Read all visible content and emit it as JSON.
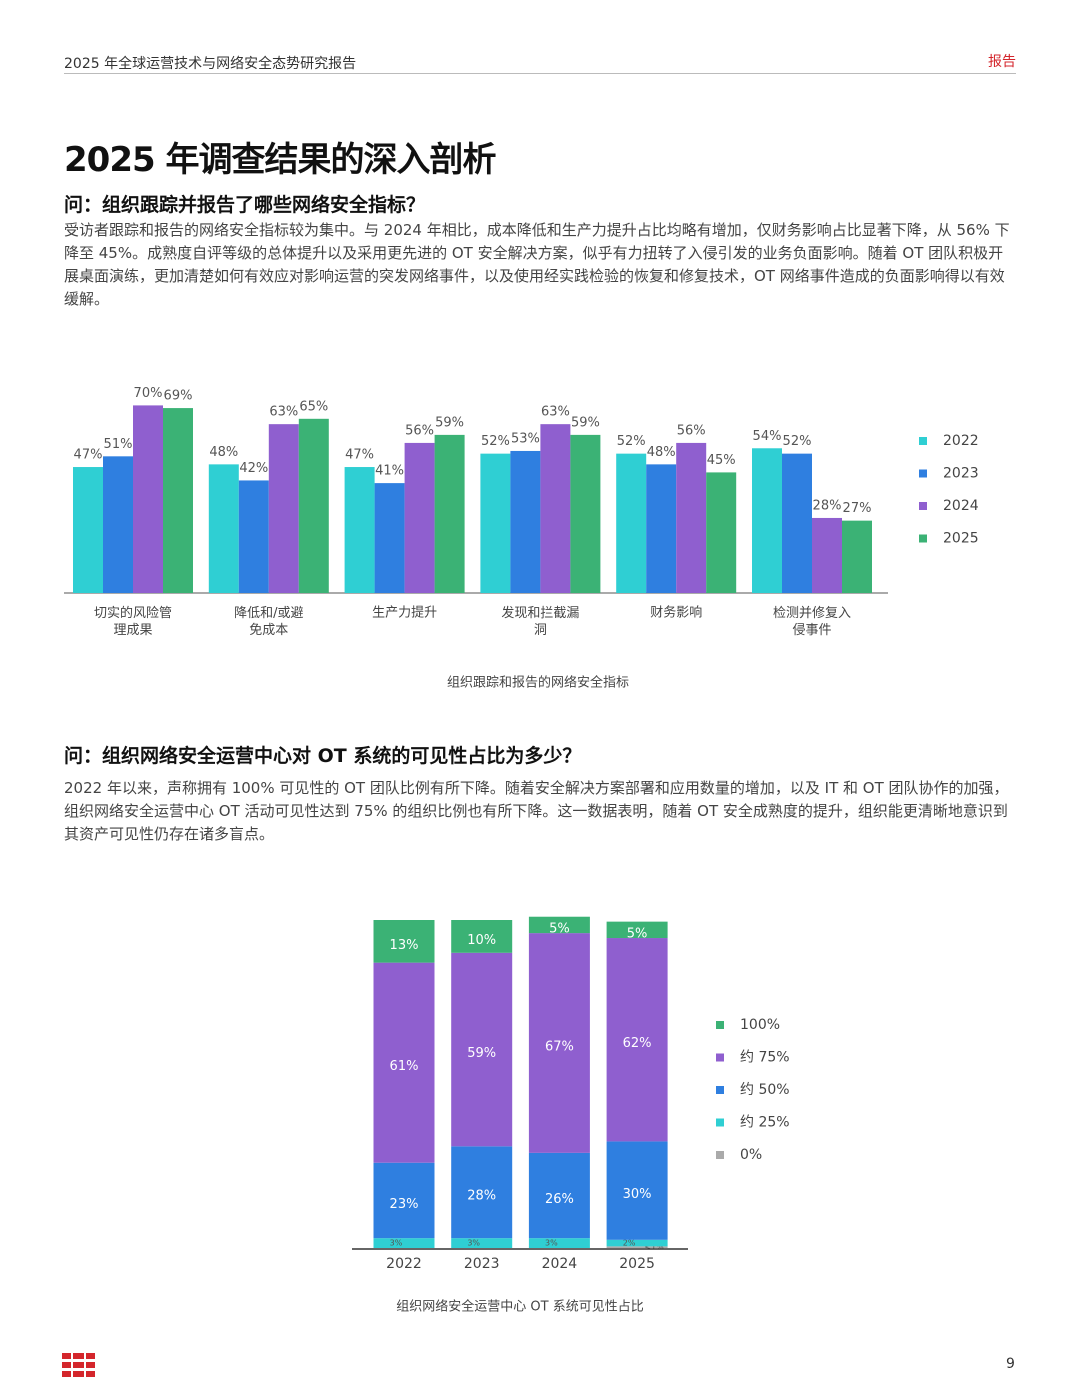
{
  "header": {
    "title": "2025 年全球运营技术与网络安全态势研究报告",
    "tag": "报告"
  },
  "title": "2025 年调查结果的深入剖析",
  "sections": [
    {
      "question": "问：组织跟踪并报告了哪些网络安全指标？",
      "body": "受访者跟踪和报告的网络安全指标较为集中。与 2024 年相比，成本降低和生产力提升占比均略有增加，仅财务影响占比显著下降，从 56% 下降至 45%。成熟度自评等级的总体提升以及采用更先进的 OT 安全解决方案，似乎有力扭转了入侵引发的业务负面影响。随着 OT 团队积极开展桌面演练，更加清楚如何有效应对影响运营的突发网络事件，以及使用经实践检验的恢复和修复技术，OT 网络事件造成的负面影响得以有效缓解。",
      "chart_data": {
        "type": "bar",
        "caption": "组织跟踪和报告的网络安全指标",
        "categories": [
          "切实的风险管理成果",
          "降低和/或避免成本",
          "生产力提升",
          "发现和拦截漏洞",
          "财务影响",
          "检测并修复入侵事件"
        ],
        "series": [
          {
            "name": "2022",
            "color": "#2fcfd3",
            "values": [
              47,
              48,
              47,
              52,
              52,
              54
            ],
            "value_labels": [
              "47%",
              "48%",
              "47%",
              "52%",
              "52%",
              "54%"
            ]
          },
          {
            "name": "2023",
            "color": "#2f7fe0",
            "values": [
              51,
              42,
              41,
              53,
              48,
              52
            ],
            "value_labels": [
              "51%",
              "42%",
              "41%",
              "53%",
              "48%",
              "52%"
            ]
          },
          {
            "name": "2024",
            "color": "#8f5fcf",
            "values": [
              70,
              63,
              56,
              63,
              56,
              28
            ],
            "value_labels": [
              "70%",
              "63%",
              "56%",
              "63%",
              "56%",
              "28%"
            ]
          },
          {
            "name": "2025",
            "color": "#3bb275",
            "values": [
              69,
              65,
              59,
              59,
              45,
              27
            ],
            "value_labels": [
              "69%",
              "65%",
              "59%",
              "59%",
              "45%",
              "27%"
            ]
          }
        ]
      }
    },
    {
      "question": "问：组织网络安全运营中心对 OT 系统的可见性占比为多少？",
      "body": "2022 年以来，声称拥有 100% 可见性的 OT 团队比例有所下降。随着安全解决方案部署和应用数量的增加，以及 IT 和 OT 团队协作的加强，组织网络安全运营中心 OT 活动可见性达到 75% 的组织比例也有所下降。这一数据表明，随着 OT 安全成熟度的提升，组织能更清晰地意识到其资产可见性仍存在诸多盲点。",
      "chart_data": {
        "type": "stacked_bar",
        "caption": "组织网络安全运营中心 OT 系统可见性占比",
        "categories": [
          "2022",
          "2023",
          "2024",
          "2025"
        ],
        "series": [
          {
            "name": "100%",
            "color": "#3bb275",
            "values": [
              13,
              10,
              5,
              5
            ],
            "value_labels": [
              "13%",
              "10%",
              "5%",
              "5%"
            ]
          },
          {
            "name": "约 75%",
            "color": "#8f5fcf",
            "values": [
              61,
              59,
              67,
              62
            ],
            "value_labels": [
              "61%",
              "59%",
              "67%",
              "62%"
            ]
          },
          {
            "name": "约 50%",
            "color": "#2f7fe0",
            "values": [
              23,
              28,
              26,
              30
            ],
            "value_labels": [
              "23%",
              "28%",
              "26%",
              "30%"
            ]
          },
          {
            "name": "约 25%",
            "color": "#2fcfd3",
            "values": [
              3,
              3,
              3,
              2
            ],
            "value_labels": [
              "3%",
              "3%",
              "3%",
              "2%"
            ]
          },
          {
            "name": "0%",
            "color": "#aaaaaa",
            "values": [
              null,
              null,
              null,
              0.5
            ],
            "value_labels": [
              null,
              null,
              null,
              "<1%"
            ]
          }
        ]
      }
    }
  ],
  "page_number": 9
}
